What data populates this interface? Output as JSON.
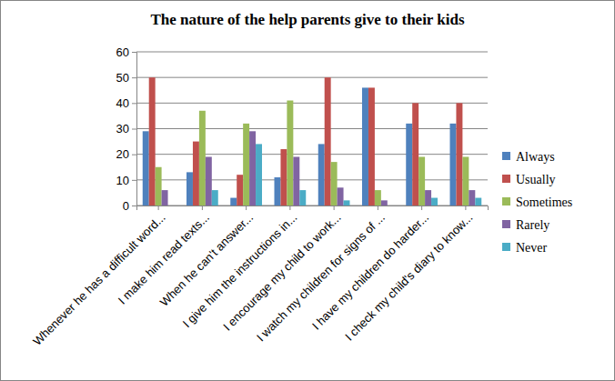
{
  "chart_data": {
    "type": "bar",
    "title": "The nature of the help parents give to their kids",
    "categories": [
      "Whenever he has a difficult word...",
      "I make him read texts...",
      "When he can't answer...",
      "I give him the instructions in...",
      "I encourage my child to work...",
      "I watch my children for signs of ...",
      "I have my children do harder...",
      "I check my child's diary to know..."
    ],
    "series": [
      {
        "name": "Always",
        "color": "#4f81bd",
        "values": [
          29,
          13,
          3,
          11,
          24,
          46,
          32,
          32
        ]
      },
      {
        "name": "Usually",
        "color": "#c0504d",
        "values": [
          50,
          25,
          12,
          22,
          50,
          46,
          40,
          40
        ]
      },
      {
        "name": "Sometimes",
        "color": "#9bbb59",
        "values": [
          15,
          37,
          32,
          41,
          17,
          6,
          19,
          19
        ]
      },
      {
        "name": "Rarely",
        "color": "#8064a2",
        "values": [
          6,
          19,
          29,
          19,
          7,
          2,
          6,
          6
        ]
      },
      {
        "name": "Never",
        "color": "#4bacc6",
        "values": [
          0,
          6,
          24,
          6,
          2,
          0,
          3,
          3
        ]
      }
    ],
    "ylim": [
      0,
      60
    ],
    "yticks": [
      0,
      10,
      20,
      30,
      40,
      50,
      60
    ],
    "grid": true,
    "legend": "right"
  }
}
